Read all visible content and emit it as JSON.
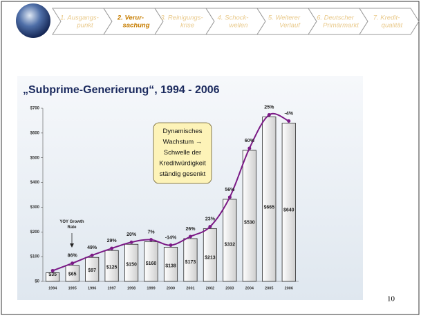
{
  "nav": {
    "steps": [
      [
        "1. Ausgangs-",
        "punkt"
      ],
      [
        "2. Verur-",
        "sachung"
      ],
      [
        "3. Reinigungs-",
        "krise"
      ],
      [
        "4. Schock-",
        "wellen"
      ],
      [
        "5. Weiterer",
        "Verlauf"
      ],
      [
        "6. Deutscher",
        "Primärmarkt"
      ],
      [
        "7. Kredit-",
        "qualität"
      ]
    ],
    "active": 1
  },
  "chart_data": {
    "type": "bar",
    "title": "„Subprime-Generierung“, 1994 - 2006",
    "categories": [
      "1994",
      "1995",
      "1996",
      "1997",
      "1998",
      "1999",
      "2000",
      "2001",
      "2002",
      "2003",
      "2004",
      "2005",
      "2006"
    ],
    "values": [
      35,
      65,
      97,
      125,
      150,
      160,
      138,
      173,
      213,
      332,
      530,
      665,
      640
    ],
    "value_labels": [
      "$35",
      "$65",
      "$97",
      "$125",
      "$150",
      "$160",
      "$138",
      "$173",
      "$213",
      "$332",
      "$530",
      "$665",
      "$640"
    ],
    "color": "#ededed",
    "line_color": "#7b1a86",
    "growth": {
      "values": [
        null,
        86,
        49,
        29,
        20,
        7,
        -14,
        26,
        23,
        56,
        60,
        25,
        -4
      ],
      "value_labels": [
        null,
        "86%",
        "49%",
        "29%",
        "20%",
        "7%",
        "-14%",
        "26%",
        "23%",
        "56%",
        "60%",
        "25%",
        "-4%"
      ]
    },
    "ylim": [
      0,
      700
    ],
    "yticks": [
      {
        "value": 0,
        "label": "$0"
      },
      {
        "value": 100,
        "label": "$100"
      },
      {
        "value": 200,
        "label": "$200"
      },
      {
        "value": 300,
        "label": "$300"
      },
      {
        "value": 400,
        "label": "$400"
      },
      {
        "value": 500,
        "label": "$500"
      },
      {
        "value": 600,
        "label": "$600"
      },
      {
        "value": 700,
        "label": "$700"
      }
    ],
    "annotation": [
      "YOY Growth",
      "Rate"
    ],
    "callout": [
      "Dynamisches",
      "Wachstum →",
      "Schwelle der",
      "Kreditwürdigkeit",
      "ständig gesenkt"
    ]
  },
  "page_number": "10"
}
